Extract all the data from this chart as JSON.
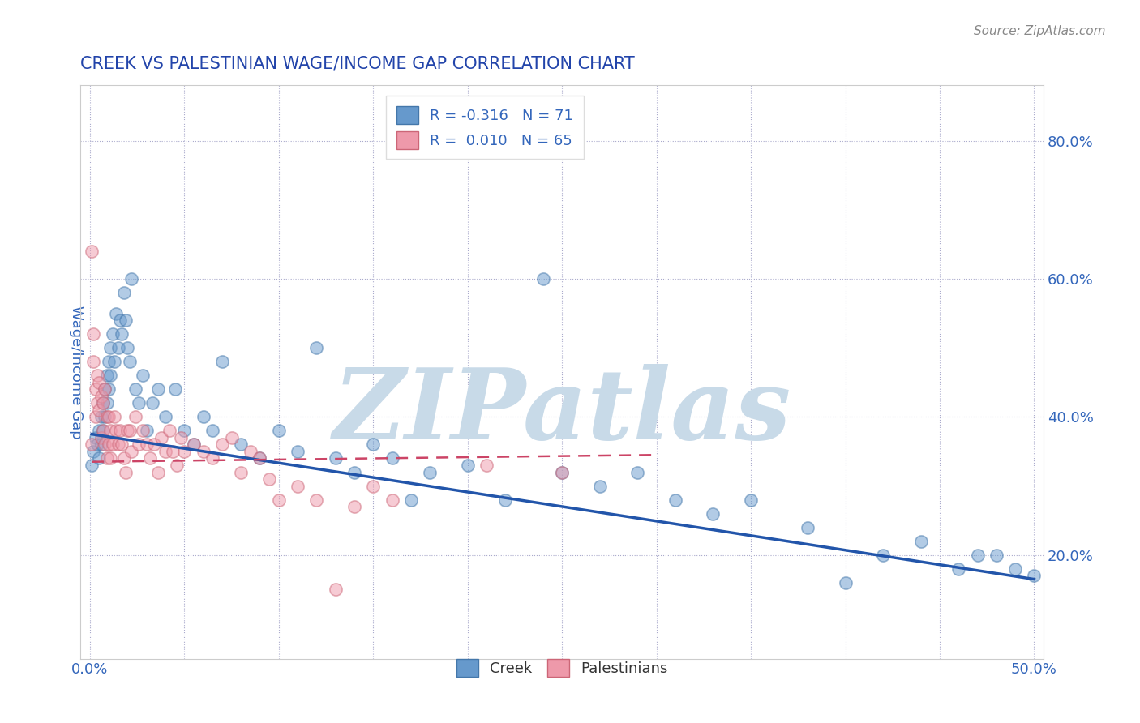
{
  "title": "CREEK VS PALESTINIAN WAGE/INCOME GAP CORRELATION CHART",
  "source_text": "Source: ZipAtlas.com",
  "xlabel": "",
  "ylabel": "Wage/Income Gap",
  "xlim": [
    -0.005,
    0.505
  ],
  "ylim": [
    0.05,
    0.88
  ],
  "x_ticks": [
    0.0,
    0.05,
    0.1,
    0.15,
    0.2,
    0.25,
    0.3,
    0.35,
    0.4,
    0.45,
    0.5
  ],
  "y_ticks": [
    0.2,
    0.4,
    0.6,
    0.8
  ],
  "y_tick_labels": [
    "20.0%",
    "40.0%",
    "60.0%",
    "80.0%"
  ],
  "creek_color": "#6699cc",
  "creek_edge_color": "#4477aa",
  "palestinian_color": "#ee99aa",
  "palestinian_edge_color": "#cc6677",
  "title_color": "#2244aa",
  "axis_color": "#3366bb",
  "watermark_text": "ZIPatlas",
  "watermark_color": "#c8dae8",
  "legend_r_creek": "R = -0.316",
  "legend_n_creek": "N = 71",
  "legend_r_pal": "R =  0.010",
  "legend_n_pal": "N = 65",
  "creek_line_x0": 0.001,
  "creek_line_x1": 0.5,
  "creek_line_y0": 0.375,
  "creek_line_y1": 0.165,
  "pal_line_x0": 0.001,
  "pal_line_x1": 0.3,
  "pal_line_y0": 0.335,
  "pal_line_y1": 0.345,
  "creek_x": [
    0.001,
    0.002,
    0.003,
    0.004,
    0.005,
    0.005,
    0.006,
    0.006,
    0.007,
    0.007,
    0.008,
    0.008,
    0.009,
    0.009,
    0.01,
    0.01,
    0.011,
    0.011,
    0.012,
    0.013,
    0.014,
    0.015,
    0.016,
    0.017,
    0.018,
    0.019,
    0.02,
    0.021,
    0.022,
    0.024,
    0.026,
    0.028,
    0.03,
    0.033,
    0.036,
    0.04,
    0.045,
    0.05,
    0.055,
    0.06,
    0.065,
    0.07,
    0.08,
    0.09,
    0.1,
    0.11,
    0.12,
    0.13,
    0.14,
    0.15,
    0.16,
    0.17,
    0.18,
    0.2,
    0.22,
    0.24,
    0.25,
    0.27,
    0.29,
    0.31,
    0.33,
    0.35,
    0.38,
    0.4,
    0.42,
    0.44,
    0.46,
    0.47,
    0.48,
    0.49,
    0.5
  ],
  "creek_y": [
    0.33,
    0.35,
    0.37,
    0.36,
    0.34,
    0.38,
    0.4,
    0.36,
    0.42,
    0.38,
    0.44,
    0.4,
    0.46,
    0.42,
    0.48,
    0.44,
    0.5,
    0.46,
    0.52,
    0.48,
    0.55,
    0.5,
    0.54,
    0.52,
    0.58,
    0.54,
    0.5,
    0.48,
    0.6,
    0.44,
    0.42,
    0.46,
    0.38,
    0.42,
    0.44,
    0.4,
    0.44,
    0.38,
    0.36,
    0.4,
    0.38,
    0.48,
    0.36,
    0.34,
    0.38,
    0.35,
    0.5,
    0.34,
    0.32,
    0.36,
    0.34,
    0.28,
    0.32,
    0.33,
    0.28,
    0.6,
    0.32,
    0.3,
    0.32,
    0.28,
    0.26,
    0.28,
    0.24,
    0.16,
    0.2,
    0.22,
    0.18,
    0.2,
    0.2,
    0.18,
    0.17
  ],
  "pal_x": [
    0.001,
    0.001,
    0.002,
    0.002,
    0.003,
    0.003,
    0.004,
    0.004,
    0.005,
    0.005,
    0.006,
    0.006,
    0.007,
    0.007,
    0.008,
    0.008,
    0.009,
    0.009,
    0.01,
    0.01,
    0.011,
    0.011,
    0.012,
    0.013,
    0.014,
    0.015,
    0.016,
    0.017,
    0.018,
    0.019,
    0.02,
    0.021,
    0.022,
    0.024,
    0.026,
    0.028,
    0.03,
    0.032,
    0.034,
    0.036,
    0.038,
    0.04,
    0.042,
    0.044,
    0.046,
    0.048,
    0.05,
    0.055,
    0.06,
    0.065,
    0.07,
    0.075,
    0.08,
    0.085,
    0.09,
    0.095,
    0.1,
    0.11,
    0.12,
    0.13,
    0.14,
    0.15,
    0.16,
    0.21,
    0.25
  ],
  "pal_y": [
    0.64,
    0.36,
    0.48,
    0.52,
    0.44,
    0.4,
    0.46,
    0.42,
    0.45,
    0.41,
    0.43,
    0.37,
    0.42,
    0.38,
    0.44,
    0.36,
    0.4,
    0.34,
    0.36,
    0.4,
    0.38,
    0.34,
    0.36,
    0.4,
    0.38,
    0.36,
    0.38,
    0.36,
    0.34,
    0.32,
    0.38,
    0.38,
    0.35,
    0.4,
    0.36,
    0.38,
    0.36,
    0.34,
    0.36,
    0.32,
    0.37,
    0.35,
    0.38,
    0.35,
    0.33,
    0.37,
    0.35,
    0.36,
    0.35,
    0.34,
    0.36,
    0.37,
    0.32,
    0.35,
    0.34,
    0.31,
    0.28,
    0.3,
    0.28,
    0.15,
    0.27,
    0.3,
    0.28,
    0.33,
    0.32
  ]
}
